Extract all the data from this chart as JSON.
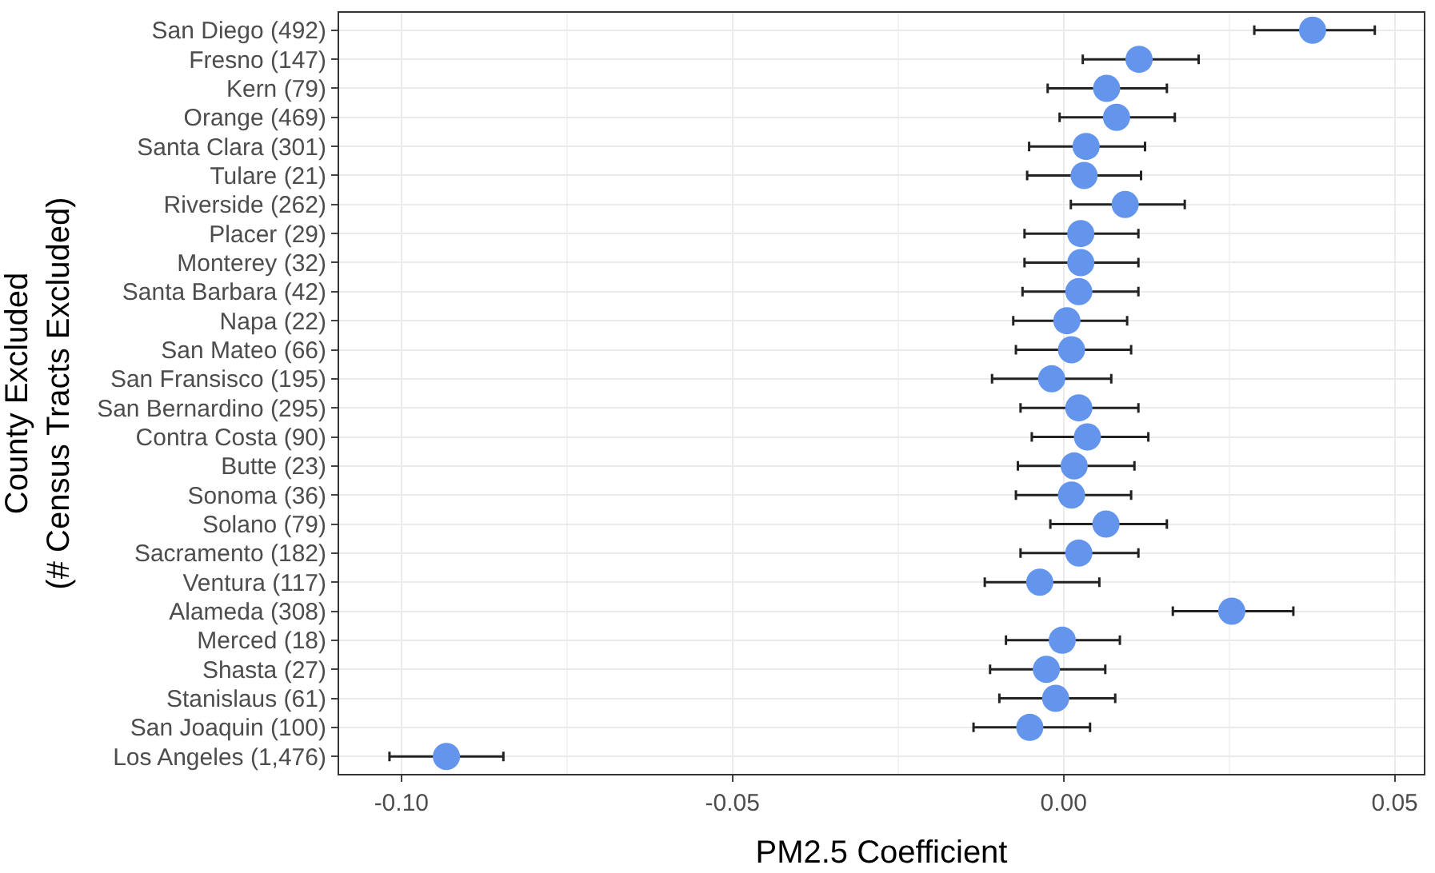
{
  "chart_data": {
    "type": "scatter",
    "orientation": "horizontal",
    "xlabel": "PM2.5 Coefficient",
    "ylabel": "County Excluded\n(# Census Tracts Excluded)",
    "categories": [
      "San Diego (492)",
      "Fresno (147)",
      "Kern (79)",
      "Orange (469)",
      "Santa Clara (301)",
      "Tulare (21)",
      "Riverside (262)",
      "Placer (29)",
      "Monterey (32)",
      "Santa Barbara (42)",
      "Napa (22)",
      "San Mateo (66)",
      "San Fransisco (195)",
      "San Bernardino (295)",
      "Contra Costa (90)",
      "Butte (23)",
      "Sonoma (36)",
      "Solano (79)",
      "Sacramento (182)",
      "Ventura (117)",
      "Alameda (308)",
      "Merced (18)",
      "Shasta (27)",
      "Stanislaus (61)",
      "San Joaquin (100)",
      "Los Angeles (1,476)"
    ],
    "series": [
      {
        "color": "#6495ed",
        "values": [
          0.0376,
          0.0114,
          0.0065,
          0.008,
          0.0034,
          0.0031,
          0.0093,
          0.0026,
          0.0026,
          0.0023,
          0.0005,
          0.0012,
          -0.0018,
          0.0023,
          0.0036,
          0.0016,
          0.0012,
          0.0064,
          0.0023,
          -0.0036,
          0.0254,
          -0.0002,
          -0.0026,
          -0.0012,
          -0.0051,
          -0.0932
        ],
        "errors": [
          [
            0.0288,
            0.047
          ],
          [
            0.0029,
            0.0204
          ],
          [
            -0.0024,
            0.0156
          ],
          [
            -0.0006,
            0.0168
          ],
          [
            -0.0052,
            0.0123
          ],
          [
            -0.0055,
            0.0117
          ],
          [
            0.0011,
            0.0183
          ],
          [
            -0.0059,
            0.0113
          ],
          [
            -0.0059,
            0.0113
          ],
          [
            -0.0062,
            0.0113
          ],
          [
            -0.0076,
            0.0096
          ],
          [
            -0.0072,
            0.0102
          ],
          [
            -0.0108,
            0.0072
          ],
          [
            -0.0065,
            0.0113
          ],
          [
            -0.0048,
            0.0128
          ],
          [
            -0.0069,
            0.0107
          ],
          [
            -0.0072,
            0.0102
          ],
          [
            -0.002,
            0.0156
          ],
          [
            -0.0065,
            0.0113
          ],
          [
            -0.0119,
            0.0054
          ],
          [
            0.0165,
            0.0347
          ],
          [
            -0.0087,
            0.0085
          ],
          [
            -0.0111,
            0.0063
          ],
          [
            -0.0097,
            0.0078
          ],
          [
            -0.0136,
            0.004
          ],
          [
            -0.1018,
            -0.0846
          ]
        ]
      }
    ],
    "xlim": [
      -0.1094,
      0.0544
    ],
    "xticks": [
      {
        "value": -0.1,
        "label": "-0.10"
      },
      {
        "value": -0.05,
        "label": "-0.05"
      },
      {
        "value": 0,
        "label": "0.00"
      },
      {
        "value": 0.05,
        "label": "0.05"
      }
    ],
    "grid": true,
    "marker": "circle"
  }
}
